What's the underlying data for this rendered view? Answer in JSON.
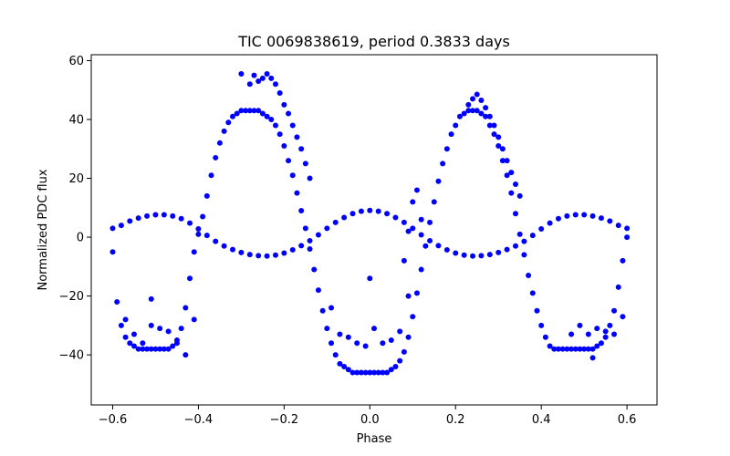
{
  "chart_data": {
    "type": "scatter",
    "title": "TIC 0069838619, period 0.3833 days",
    "xlabel": "Phase",
    "ylabel": "Normalized PDC flux",
    "xlim": [
      -0.65,
      0.67
    ],
    "ylim": [
      -57,
      62
    ],
    "xticks": [
      -0.6,
      -0.4,
      -0.2,
      0.0,
      0.2,
      0.4,
      0.6
    ],
    "xtick_labels": [
      "−0.6",
      "−0.4",
      "−0.2",
      "0.0",
      "0.2",
      "0.4",
      "0.6"
    ],
    "yticks": [
      -40,
      -20,
      0,
      20,
      40,
      60
    ],
    "ytick_labels": [
      "−40",
      "−20",
      "0",
      "20",
      "40",
      "60"
    ],
    "grid": false,
    "marker_color": "#0000ff",
    "series": [
      {
        "description_key": "main_light_curve",
        "x": [
          -0.6,
          -0.59,
          -0.58,
          -0.57,
          -0.56,
          -0.55,
          -0.54,
          -0.53,
          -0.52,
          -0.51,
          -0.5,
          -0.49,
          -0.48,
          -0.47,
          -0.46,
          -0.45,
          -0.44,
          -0.43,
          -0.42,
          -0.41,
          -0.4,
          -0.39,
          -0.38,
          -0.37,
          -0.36,
          -0.35,
          -0.34,
          -0.33,
          -0.32,
          -0.31,
          -0.3,
          -0.29,
          -0.28,
          -0.27,
          -0.26,
          -0.25,
          -0.24,
          -0.23,
          -0.22,
          -0.21,
          -0.2,
          -0.19,
          -0.18,
          -0.17,
          -0.16,
          -0.15,
          -0.14,
          -0.13,
          -0.12,
          -0.11,
          -0.1,
          -0.09,
          -0.08,
          -0.07,
          -0.06,
          -0.05,
          -0.04,
          -0.03,
          -0.02,
          -0.01,
          0.0,
          0.01,
          0.02,
          0.03,
          0.04,
          0.05,
          0.06,
          0.07,
          0.08,
          0.09,
          0.1,
          0.11,
          0.12,
          0.13,
          0.14,
          0.15,
          0.16,
          0.17,
          0.18,
          0.19,
          0.2,
          0.21,
          0.22,
          0.23,
          0.24,
          0.25,
          0.26,
          0.27,
          0.28,
          0.29,
          0.3,
          0.31,
          0.32,
          0.33,
          0.34,
          0.35,
          0.36,
          0.37,
          0.38,
          0.39,
          0.4,
          0.41,
          0.42,
          0.43,
          0.44,
          0.45,
          0.46,
          0.47,
          0.48,
          0.49,
          0.5,
          0.51,
          0.52,
          0.53,
          0.54,
          0.55,
          0.56,
          0.57,
          0.58,
          0.59,
          0.6
        ],
        "y": [
          -5,
          -22,
          -30,
          -34,
          -36,
          -37,
          -38,
          -38,
          -38,
          -38,
          -38,
          -38,
          -38,
          -38,
          -37,
          -35,
          -31,
          -24,
          -14,
          -5,
          1,
          7,
          14,
          21,
          27,
          32,
          36,
          39,
          41,
          42,
          43,
          43,
          43,
          43,
          43,
          42,
          41,
          40,
          38,
          35,
          31,
          26,
          21,
          15,
          9,
          3,
          -4,
          -11,
          -18,
          -25,
          -31,
          -36,
          -40,
          -43,
          -44,
          -45,
          -46,
          -46,
          -46,
          -46,
          -46,
          -46,
          -46,
          -46,
          -46,
          -45,
          -44,
          -42,
          -39,
          -34,
          -27,
          -19,
          -11,
          -3,
          5,
          12,
          19,
          25,
          30,
          35,
          38,
          41,
          42,
          43,
          43,
          43,
          42,
          41,
          38,
          35,
          31,
          26,
          21,
          15,
          8,
          1,
          -6,
          -13,
          -19,
          -25,
          -30,
          -34,
          -37,
          -38,
          -38,
          -38,
          -38,
          -38,
          -38,
          -38,
          -38,
          -38,
          -38,
          -37,
          -36,
          -34,
          -30,
          -25,
          -17,
          -8,
          0
        ]
      },
      {
        "description_key": "secondary_curve",
        "x": [
          -0.6,
          -0.58,
          -0.56,
          -0.54,
          -0.52,
          -0.5,
          -0.48,
          -0.46,
          -0.44,
          -0.42,
          -0.4,
          -0.38,
          -0.36,
          -0.34,
          -0.32,
          -0.3,
          -0.28,
          -0.26,
          -0.24,
          -0.22,
          -0.2,
          -0.18,
          -0.16,
          -0.14,
          -0.12,
          -0.1,
          -0.08,
          -0.06,
          -0.04,
          -0.02,
          0.0,
          0.02,
          0.04,
          0.06,
          0.08,
          0.1,
          0.12,
          0.14,
          0.16,
          0.18,
          0.2,
          0.22,
          0.24,
          0.26,
          0.28,
          0.3,
          0.32,
          0.34,
          0.36,
          0.38,
          0.4,
          0.42,
          0.44,
          0.46,
          0.48,
          0.5,
          0.52,
          0.54,
          0.56,
          0.58,
          0.6
        ],
        "y": [
          3,
          4,
          5.5,
          6.5,
          7.2,
          7.6,
          7.6,
          7.2,
          6.3,
          4.8,
          2.8,
          0.6,
          -1.4,
          -3.0,
          -4.2,
          -5.2,
          -5.9,
          -6.3,
          -6.4,
          -6.1,
          -5.4,
          -4.3,
          -2.9,
          -1.2,
          0.8,
          3.0,
          5.0,
          6.7,
          8.0,
          8.8,
          9.1,
          8.8,
          8.0,
          6.7,
          5.0,
          3.0,
          0.8,
          -1.2,
          -2.9,
          -4.3,
          -5.4,
          -6.1,
          -6.4,
          -6.3,
          -5.9,
          -5.2,
          -4.2,
          -3.0,
          -1.4,
          0.6,
          2.8,
          4.8,
          6.3,
          7.2,
          7.6,
          7.6,
          7.2,
          6.5,
          5.5,
          4,
          3
        ]
      },
      {
        "description_key": "upper_outliers",
        "x": [
          -0.3,
          -0.28,
          -0.27,
          -0.26,
          -0.25,
          -0.24,
          -0.23,
          -0.22,
          -0.21,
          -0.2,
          -0.19,
          -0.18,
          -0.17,
          -0.16,
          -0.15,
          -0.14,
          0.23,
          0.24,
          0.25,
          0.26,
          0.27,
          0.28,
          0.29,
          0.3,
          0.31,
          0.32,
          0.33,
          0.34,
          0.35
        ],
        "y": [
          55.5,
          52,
          55,
          53,
          54,
          55.5,
          54,
          52,
          49,
          45,
          42,
          38,
          34,
          30,
          25,
          20,
          45,
          47,
          48.5,
          46.5,
          44,
          41,
          38,
          34,
          30,
          26,
          22,
          18,
          14
        ]
      },
      {
        "description_key": "lower_outliers",
        "x": [
          -0.57,
          -0.55,
          -0.53,
          -0.51,
          -0.49,
          -0.47,
          -0.45,
          -0.43,
          -0.41,
          -0.09,
          -0.07,
          -0.05,
          -0.03,
          -0.01,
          0.0,
          0.01,
          0.03,
          0.05,
          0.07,
          0.09,
          0.47,
          0.49,
          0.51,
          0.53,
          0.55,
          0.57,
          0.59,
          0.52,
          -0.51
        ],
        "y": [
          -28,
          -33,
          -36,
          -30,
          -31,
          -32,
          -36,
          -40,
          -28,
          -24,
          -33,
          -34,
          -36,
          -37,
          -14,
          -31,
          -36,
          -35,
          -32,
          -20,
          -33,
          -30,
          -33,
          -31,
          -32,
          -33,
          -27,
          -41,
          -21
        ]
      },
      {
        "description_key": "right_ascent",
        "x": [
          0.08,
          0.09,
          0.1,
          0.11,
          0.12
        ],
        "y": [
          -8,
          2,
          12,
          16,
          6
        ]
      }
    ]
  }
}
